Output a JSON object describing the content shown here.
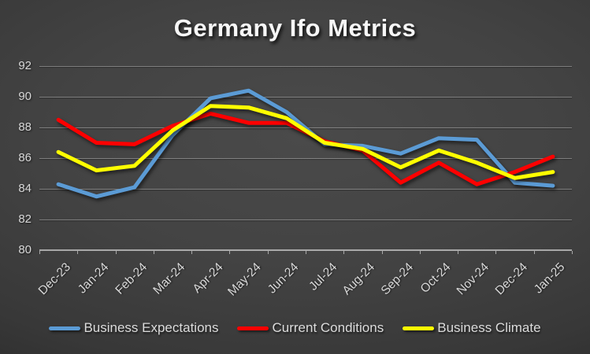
{
  "title": "Germany Ifo Metrics",
  "chart_data": {
    "type": "line",
    "title": "Germany Ifo Metrics",
    "categories": [
      "Dec-23",
      "Jan-24",
      "Feb-24",
      "Mar-24",
      "Apr-24",
      "May-24",
      "Jun-24",
      "Jul-24",
      "Aug-24",
      "Sep-24",
      "Oct-24",
      "Nov-24",
      "Dec-24",
      "Jan-25"
    ],
    "series": [
      {
        "name": "Business Expectations",
        "color": "#5B9BD5",
        "values": [
          84.3,
          83.5,
          84.1,
          87.5,
          89.9,
          90.4,
          89.0,
          86.9,
          86.8,
          86.3,
          87.3,
          87.2,
          84.4,
          84.2
        ]
      },
      {
        "name": "Current Conditions",
        "color": "#FF0000",
        "values": [
          88.5,
          87.0,
          86.9,
          88.1,
          88.9,
          88.3,
          88.3,
          87.1,
          86.5,
          84.4,
          85.7,
          84.3,
          85.1,
          86.1
        ]
      },
      {
        "name": "Business Climate",
        "color": "#FFFF00",
        "values": [
          86.4,
          85.2,
          85.5,
          87.8,
          89.4,
          89.3,
          88.6,
          87.0,
          86.6,
          85.4,
          86.5,
          85.7,
          84.7,
          85.1
        ]
      }
    ],
    "xlabel": "",
    "ylabel": "",
    "ylim": [
      80,
      92
    ],
    "yticks": [
      80,
      82,
      84,
      86,
      88,
      90,
      92
    ],
    "grid": true,
    "legend_position": "bottom",
    "x_tick_rotation": -45
  },
  "colors": {
    "background_center": "#4a4a4a",
    "background_edge": "#151515",
    "gridline": "rgba(255,255,255,0.32)",
    "axis": "rgba(255,255,255,0.55)",
    "tick_label": "#d8d8d8",
    "title_text": "#f7f7f7",
    "legend_text": "#dcdcdc"
  }
}
